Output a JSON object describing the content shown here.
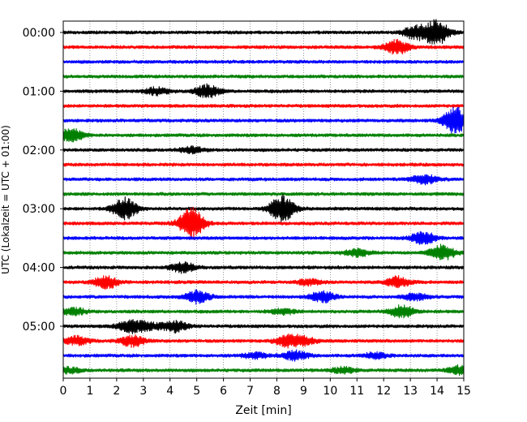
{
  "chart_data": {
    "type": "line",
    "title": "",
    "xlabel": "Zeit  [min]",
    "ylabel": "UTC (Lokalzeit = UTC + 01:00)",
    "xlim": [
      0,
      15
    ],
    "x_ticks": [
      "0",
      "1",
      "2",
      "3",
      "4",
      "5",
      "6",
      "7",
      "8",
      "9",
      "10",
      "11",
      "12",
      "13",
      "14",
      "15"
    ],
    "y_ticks": [
      "00:00",
      "01:00",
      "02:00",
      "03:00",
      "04:00",
      "05:00"
    ],
    "trace_interval_min": 15,
    "grid": "vertical dotted",
    "color_cycle": [
      "#000000",
      "#ff0000",
      "#0000ff",
      "#008000"
    ],
    "traces": [
      {
        "start": "00:00",
        "events": [
          [
            14.0,
            0.9
          ],
          [
            13.2,
            0.5
          ]
        ]
      },
      {
        "start": "00:15",
        "events": [
          [
            12.5,
            0.5
          ]
        ]
      },
      {
        "start": "00:30",
        "events": []
      },
      {
        "start": "00:45",
        "events": []
      },
      {
        "start": "01:00",
        "events": [
          [
            5.4,
            0.45
          ],
          [
            3.5,
            0.25
          ]
        ]
      },
      {
        "start": "01:15",
        "events": []
      },
      {
        "start": "01:30",
        "events": [
          [
            14.7,
            1.0
          ]
        ]
      },
      {
        "start": "01:45",
        "events": [
          [
            0.3,
            0.5
          ]
        ]
      },
      {
        "start": "02:00",
        "events": [
          [
            4.8,
            0.2
          ]
        ]
      },
      {
        "start": "02:15",
        "events": []
      },
      {
        "start": "02:30",
        "events": [
          [
            13.5,
            0.35
          ]
        ]
      },
      {
        "start": "02:45",
        "events": []
      },
      {
        "start": "03:00",
        "events": [
          [
            2.3,
            0.8
          ],
          [
            8.2,
            1.0
          ]
        ]
      },
      {
        "start": "03:15",
        "events": [
          [
            4.8,
            1.2
          ]
        ]
      },
      {
        "start": "03:30",
        "events": [
          [
            13.5,
            0.45
          ]
        ]
      },
      {
        "start": "03:45",
        "events": [
          [
            14.2,
            0.55
          ],
          [
            11.0,
            0.25
          ]
        ]
      },
      {
        "start": "04:00",
        "events": [
          [
            4.5,
            0.35
          ]
        ]
      },
      {
        "start": "04:15",
        "events": [
          [
            1.6,
            0.45
          ],
          [
            12.5,
            0.4
          ],
          [
            9.2,
            0.2
          ]
        ]
      },
      {
        "start": "04:30",
        "events": [
          [
            5.0,
            0.45
          ],
          [
            9.7,
            0.4
          ],
          [
            13.2,
            0.25
          ]
        ]
      },
      {
        "start": "04:45",
        "events": [
          [
            12.7,
            0.45
          ],
          [
            0.4,
            0.25
          ],
          [
            8.2,
            0.2
          ]
        ]
      },
      {
        "start": "05:00",
        "events": [
          [
            2.5,
            0.45
          ],
          [
            4.2,
            0.4
          ],
          [
            3.2,
            0.25
          ]
        ]
      },
      {
        "start": "05:15",
        "events": [
          [
            2.6,
            0.4
          ],
          [
            8.4,
            0.4
          ],
          [
            9.0,
            0.3
          ],
          [
            0.5,
            0.3
          ]
        ]
      },
      {
        "start": "05:30",
        "events": [
          [
            8.7,
            0.35
          ],
          [
            7.2,
            0.2
          ],
          [
            11.7,
            0.2
          ]
        ]
      },
      {
        "start": "05:45",
        "events": [
          [
            14.9,
            0.35
          ],
          [
            10.5,
            0.2
          ],
          [
            0.2,
            0.2
          ]
        ]
      }
    ]
  }
}
